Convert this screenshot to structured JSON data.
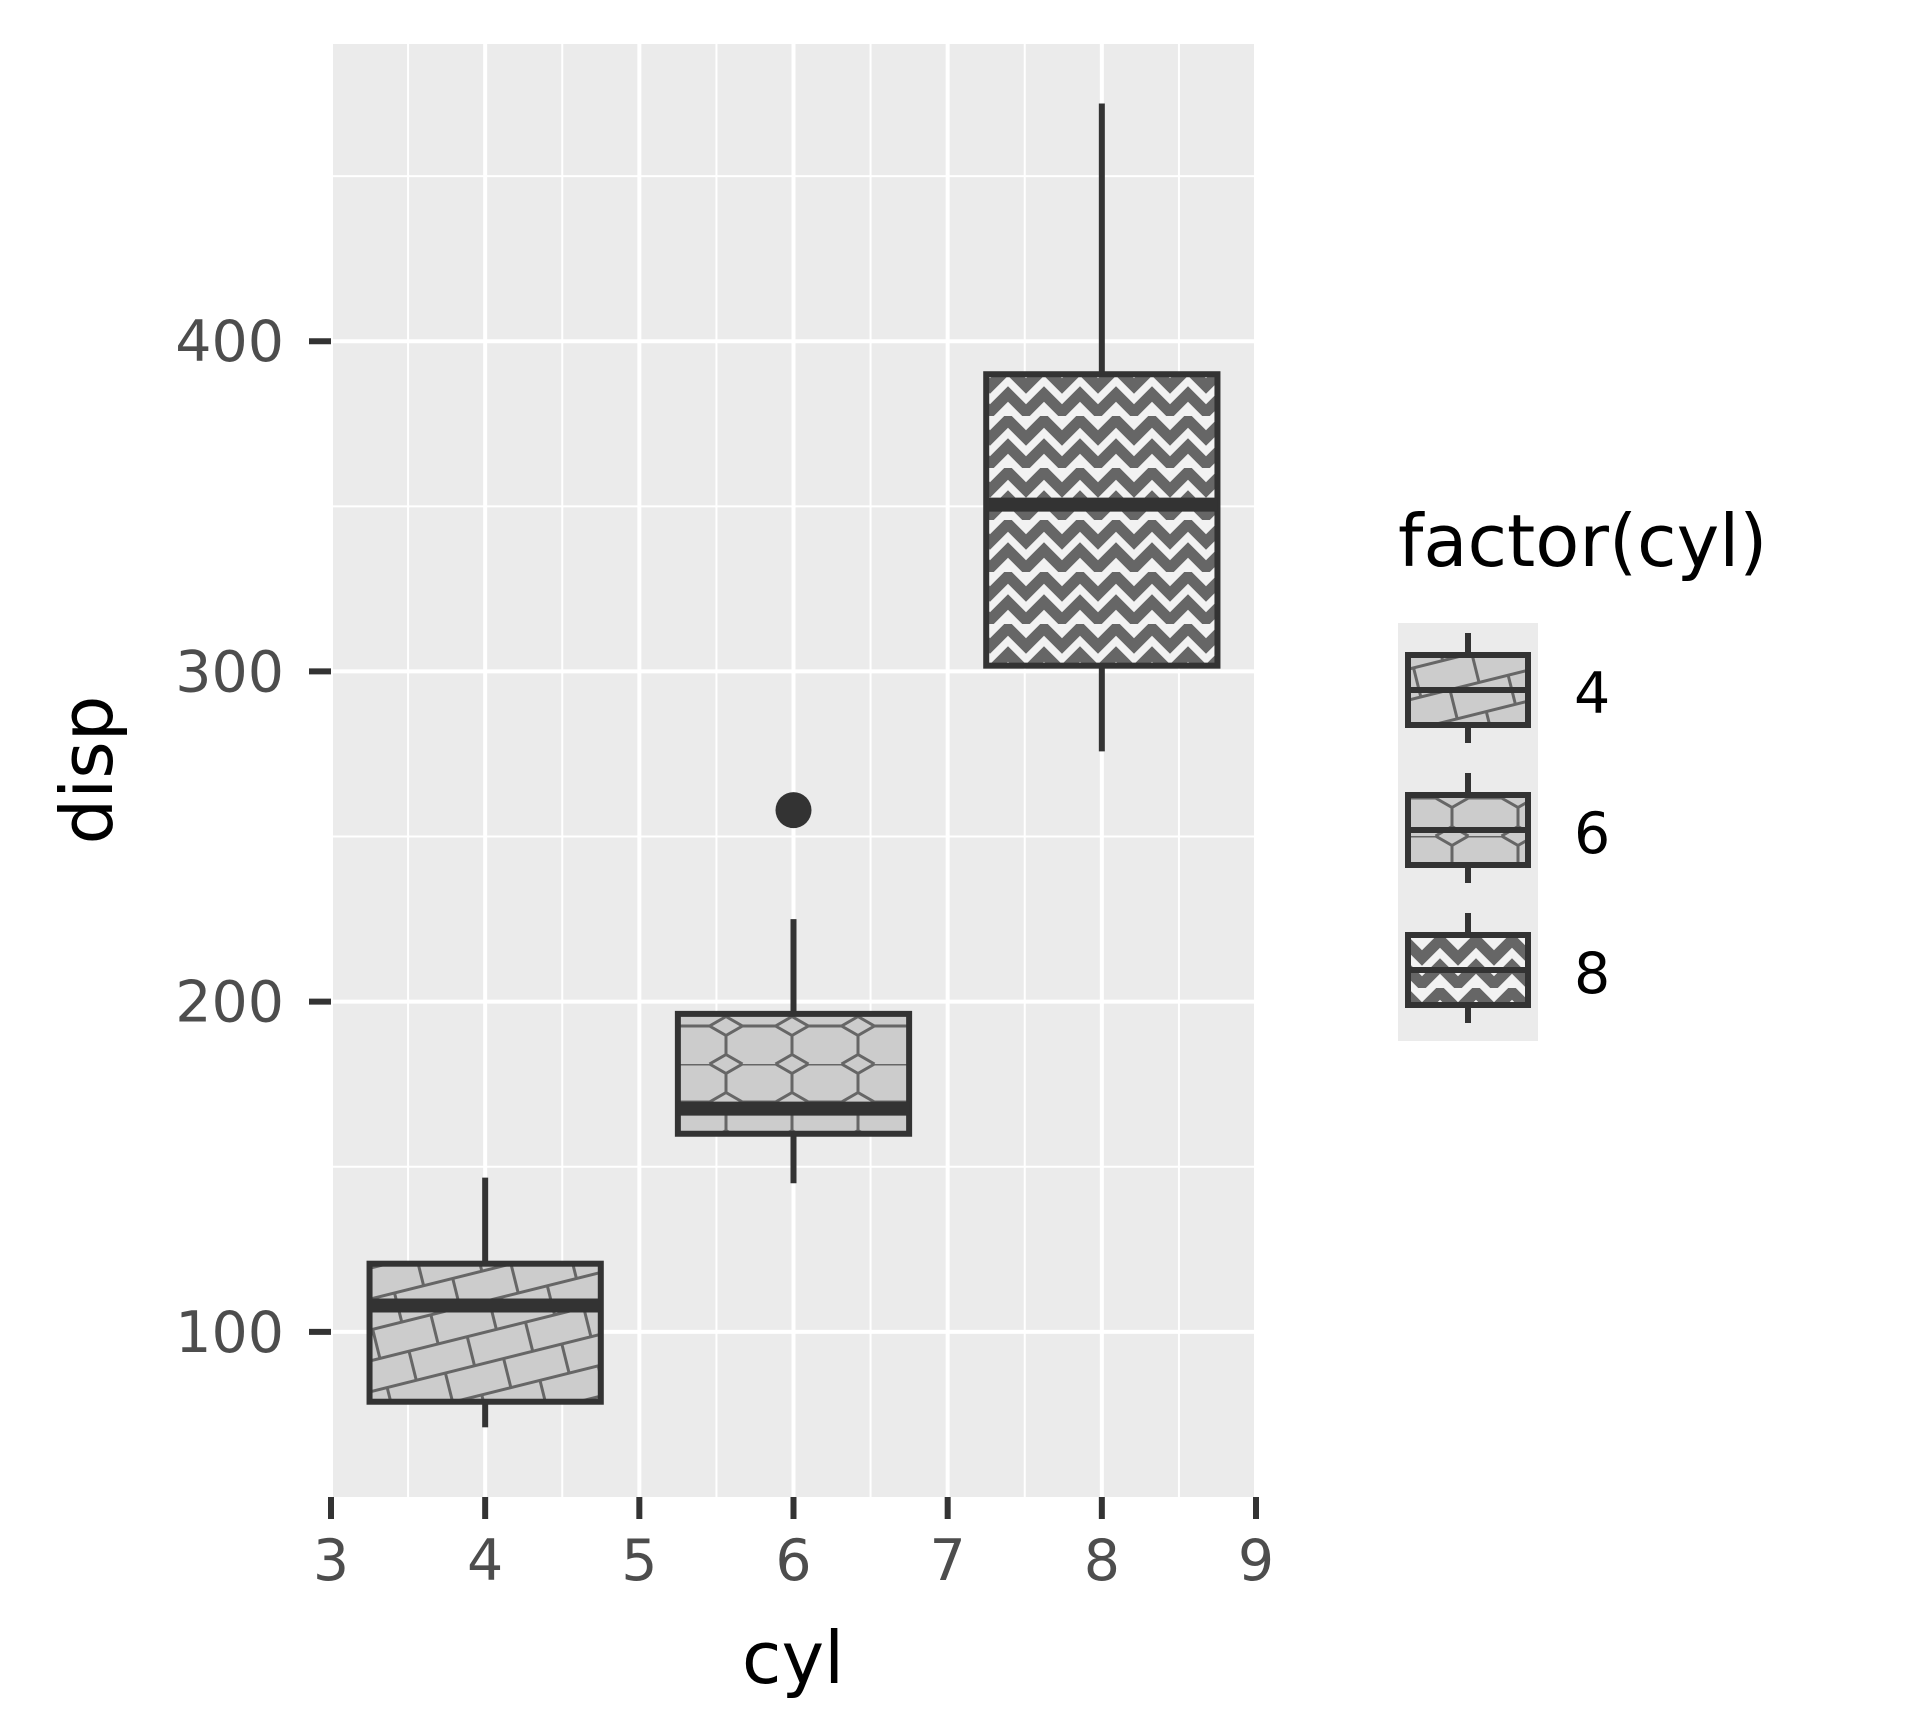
{
  "chart_data": {
    "type": "boxplot",
    "x": [
      4,
      6,
      8
    ],
    "series": [
      {
        "group": "4",
        "x": 4,
        "lower_whisker": 71.1,
        "q1": 78.85,
        "median": 108.0,
        "q3": 120.65,
        "upper_whisker": 146.7,
        "outliers": []
      },
      {
        "group": "6",
        "x": 6,
        "lower_whisker": 145.0,
        "q1": 160.0,
        "median": 167.6,
        "q3": 196.3,
        "upper_whisker": 225.0,
        "outliers": [
          258.0
        ]
      },
      {
        "group": "8",
        "x": 8,
        "lower_whisker": 275.8,
        "q1": 301.75,
        "median": 350.5,
        "q3": 390.0,
        "upper_whisker": 472.0,
        "outliers": []
      }
    ],
    "xlabel": "cyl",
    "ylabel": "disp",
    "xlim": [
      3,
      9
    ],
    "ylim": [
      50,
      490
    ],
    "x_ticks": [
      "3",
      "4",
      "5",
      "6",
      "7",
      "8",
      "9"
    ],
    "y_ticks": [
      "100",
      "200",
      "300",
      "400"
    ],
    "legend": {
      "title": "factor(cyl)",
      "entries": [
        "4",
        "6",
        "8"
      ],
      "patterns": [
        "bricks-icon",
        "hexagons-icon",
        "zigzag-icon"
      ],
      "placement": "right"
    },
    "grid": true,
    "colors": {
      "panel": "#ebebeb",
      "grid": "#ffffff",
      "box_fill": "#cccccc",
      "box_line": "#333333",
      "pattern": "#666666"
    }
  }
}
